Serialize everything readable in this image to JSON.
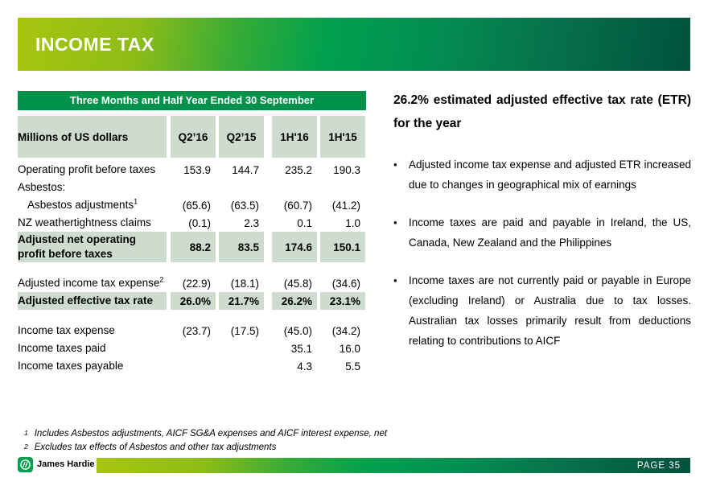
{
  "slide": {
    "title": "INCOME TAX",
    "brand": "James Hardie",
    "page_label": "PAGE  35"
  },
  "colors": {
    "banner_gradient_start": "#a8c50e",
    "banner_gradient_mid": "#00a04e",
    "banner_gradient_end": "#00523c",
    "table_title_green": "#00924a",
    "shaded_cell": "#cedbcf"
  },
  "table": {
    "title": "Three Months and Half Year Ended 30 September",
    "header": [
      "Millions of US dollars",
      "Q2’16",
      "Q2’15",
      "1H'16",
      "1H'15"
    ],
    "rows": [
      {
        "label": "Operating profit before taxes",
        "values": [
          "153.9",
          "144.7",
          "235.2",
          "190.3"
        ]
      },
      {
        "label": "Asbestos:",
        "values": [
          "",
          "",
          "",
          ""
        ]
      },
      {
        "label": "Asbestos adjustments",
        "sup": "1",
        "indent": true,
        "values": [
          "(65.6)",
          "(63.5)",
          "(60.7)",
          "(41.2)"
        ]
      },
      {
        "label": "NZ weathertightness claims",
        "values": [
          "(0.1)",
          "2.3",
          "0.1",
          "1.0"
        ]
      },
      {
        "label": "Adjusted net operating profit before taxes",
        "bold": true,
        "shaded": true,
        "tall": true,
        "values": [
          "88.2",
          "83.5",
          "174.6",
          "150.1"
        ]
      },
      {
        "spacer": true
      },
      {
        "label": "Adjusted income tax expense",
        "sup": "2",
        "values": [
          "(22.9)",
          "(18.1)",
          "(45.8)",
          "(34.6)"
        ]
      },
      {
        "label": "Adjusted effective tax rate",
        "bold": true,
        "shaded": true,
        "values": [
          "26.0%",
          "21.7%",
          "26.2%",
          "23.1%"
        ]
      },
      {
        "spacer": true
      },
      {
        "label": "Income tax expense",
        "values": [
          "(23.7)",
          "(17.5)",
          "(45.0)",
          "(34.2)"
        ]
      },
      {
        "label": "Income taxes paid",
        "values": [
          "",
          "",
          "35.1",
          "16.0"
        ]
      },
      {
        "label": "Income taxes payable",
        "values": [
          "",
          "",
          "4.3",
          "5.5"
        ]
      }
    ]
  },
  "right_panel": {
    "heading": "26.2% estimated adjusted effective tax rate (ETR) for the year",
    "bullets": [
      "Adjusted income tax expense and adjusted ETR increased due to changes in geographical mix of earnings",
      "Income taxes are paid and payable in Ireland, the US, Canada, New Zealand and the Philippines",
      "Income taxes are not currently paid or payable in Europe (excluding Ireland) or Australia due to tax losses. Australian tax losses primarily result from deductions relating to contributions to AICF"
    ]
  },
  "footnotes": [
    {
      "sup": "1",
      "text": "Includes Asbestos adjustments, AICF SG&A expenses and AICF interest expense, net"
    },
    {
      "sup": "2",
      "text": "Excludes tax effects of Asbestos and other tax adjustments"
    }
  ]
}
